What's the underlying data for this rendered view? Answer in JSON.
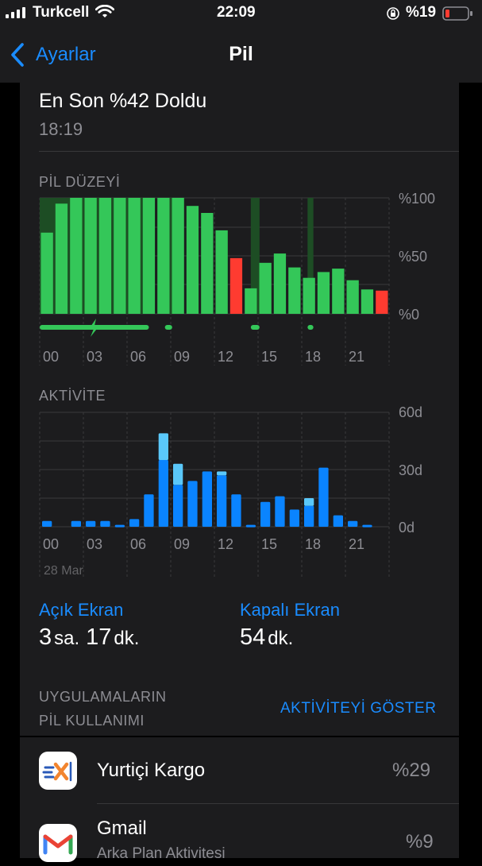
{
  "status": {
    "carrier": "Turkcell",
    "time": "22:09",
    "battery": "%19"
  },
  "nav": {
    "back_label": "Ayarlar",
    "title": "Pil"
  },
  "last_charge": {
    "title": "En Son %42 Doldu",
    "time": "18:19"
  },
  "battery_chart": {
    "title": "PİL DÜZEYİ",
    "y_ticks": [
      "%100",
      "%50",
      "%0"
    ],
    "x_ticks": [
      "00",
      "03",
      "06",
      "09",
      "12",
      "15",
      "18",
      "21"
    ]
  },
  "activity_chart": {
    "title": "AKTİVİTE",
    "y_ticks": [
      "60d",
      "30d",
      "0d"
    ],
    "x_ticks": [
      "00",
      "03",
      "06",
      "09",
      "12",
      "15",
      "18",
      "21"
    ],
    "date_label": "28 Mar"
  },
  "screen": {
    "on_label": "Açık Ekran",
    "on_value_num1": "3",
    "on_value_unit1": "sa.",
    "on_value_num2": "17",
    "on_value_unit2": "dk.",
    "off_label": "Kapalı Ekran",
    "off_value_num": "54",
    "off_value_unit": "dk."
  },
  "usage": {
    "header_line1": "UYGULAMALARIN",
    "header_line2": "PİL KULLANIMI",
    "show_activity": "AKTİVİTEYİ GÖSTER",
    "apps": [
      {
        "name": "Yurtiçi Kargo",
        "percent": "%29",
        "subtitle": ""
      },
      {
        "name": "Gmail",
        "percent": "%9",
        "subtitle": "Arka Plan Aktivitesi"
      }
    ]
  },
  "colors": {
    "accent": "#1a8cff",
    "battery_green": "#34c759",
    "battery_red": "#ff3b30",
    "activity_blue": "#0a84ff",
    "activity_light_blue": "#5ac8fa"
  },
  "chart_data": [
    {
      "type": "bar",
      "title": "PİL DÜZEYİ",
      "xlabel": "",
      "ylabel": "",
      "ylim": [
        0,
        100
      ],
      "categories": [
        "00",
        "",
        "",
        "03",
        "",
        "",
        "06",
        "",
        "",
        "09",
        "",
        "",
        "12",
        "",
        "",
        "15",
        "",
        "",
        "18",
        "",
        "",
        "21",
        "",
        ""
      ],
      "values": [
        70,
        95,
        100,
        100,
        100,
        100,
        100,
        100,
        100,
        100,
        93,
        87,
        72,
        48,
        22,
        44,
        52,
        40,
        31,
        36,
        39,
        29,
        21,
        20
      ],
      "low_battery_hours": [
        13,
        23
      ]
    },
    {
      "type": "bar",
      "title": "AKTİVİTE",
      "xlabel": "",
      "ylabel": "",
      "ylim": [
        0,
        60
      ],
      "categories": [
        "00",
        "",
        "",
        "03",
        "",
        "",
        "06",
        "",
        "",
        "09",
        "",
        "",
        "12",
        "",
        "",
        "15",
        "",
        "",
        "18",
        "",
        "",
        "21",
        "",
        ""
      ],
      "series": [
        {
          "values": [
            3,
            0,
            3,
            3,
            3,
            1,
            4,
            17,
            35,
            22,
            24,
            29,
            27,
            17,
            1,
            13,
            16,
            9,
            11,
            31,
            6,
            3,
            1,
            0
          ]
        },
        {
          "values": [
            0,
            0,
            0,
            0,
            0,
            0,
            0,
            0,
            14,
            11,
            0,
            0,
            2,
            0,
            0,
            0,
            0,
            0,
            4,
            0,
            0,
            0,
            0,
            0
          ]
        }
      ],
      "date_label": "28 Mar"
    }
  ]
}
